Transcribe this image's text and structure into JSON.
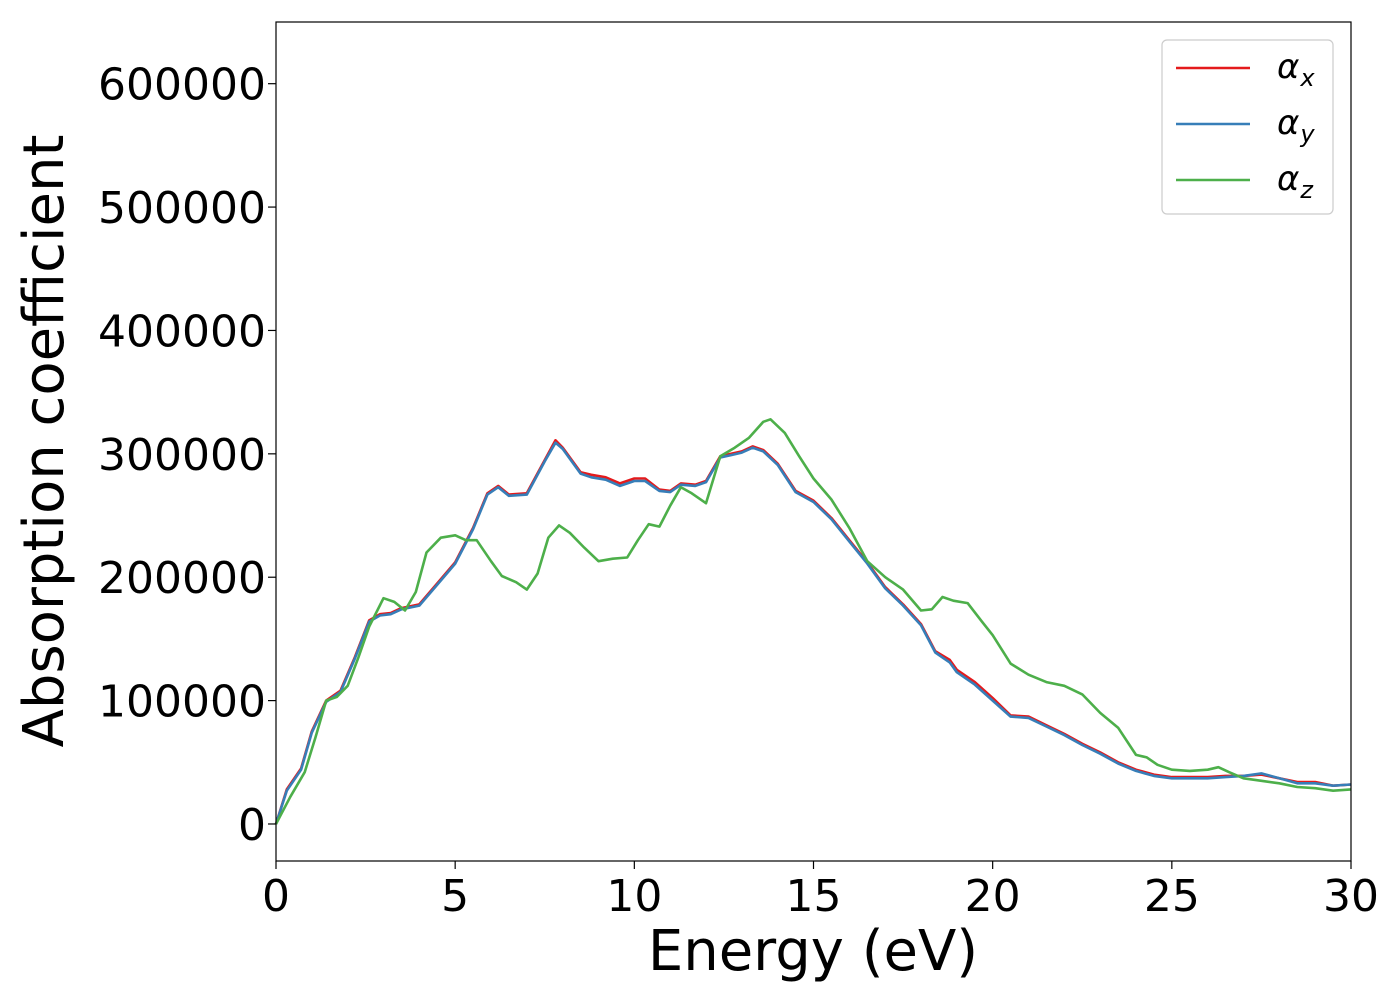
{
  "chart_data": {
    "type": "line",
    "title": "",
    "xlabel": "Energy (eV)",
    "ylabel": "Absorption coefficient",
    "xlim": [
      0,
      30
    ],
    "ylim": [
      -30000,
      650000
    ],
    "xticks": [
      0,
      5,
      10,
      15,
      20,
      25,
      30
    ],
    "yticks": [
      0,
      100000,
      200000,
      300000,
      400000,
      500000,
      600000
    ],
    "xtick_labels": [
      "0",
      "5",
      "10",
      "15",
      "20",
      "25",
      "30"
    ],
    "ytick_labels": [
      "0",
      "100000",
      "200000",
      "300000",
      "400000",
      "500000",
      "600000"
    ],
    "grid": false,
    "legend_position": "top-right",
    "series": [
      {
        "name": "α_x",
        "symbol": "α",
        "subscript": "x",
        "color": "#e41a1c",
        "x": [
          0,
          0.3,
          0.7,
          1.0,
          1.4,
          1.8,
          2.2,
          2.6,
          2.9,
          3.2,
          3.5,
          4.0,
          4.5,
          5.0,
          5.5,
          5.9,
          6.2,
          6.5,
          7.0,
          7.5,
          7.8,
          8.0,
          8.5,
          8.8,
          9.2,
          9.6,
          10.0,
          10.3,
          10.7,
          11.0,
          11.3,
          11.7,
          12.0,
          12.4,
          12.7,
          13.0,
          13.3,
          13.6,
          14.0,
          14.5,
          15.0,
          15.5,
          16.0,
          16.5,
          17.0,
          17.5,
          18.0,
          18.4,
          18.8,
          19.0,
          19.5,
          20.0,
          20.5,
          21.0,
          21.5,
          22.0,
          22.5,
          23.0,
          23.5,
          24.0,
          24.5,
          25.0,
          25.5,
          26.0,
          26.5,
          27.0,
          27.5,
          28.0,
          28.5,
          29.0,
          29.5,
          30.0
        ],
        "values": [
          0,
          28000,
          45000,
          75000,
          100000,
          108000,
          135000,
          165000,
          170000,
          171000,
          175000,
          178000,
          195000,
          212000,
          240000,
          268000,
          274000,
          267000,
          268000,
          295000,
          311000,
          305000,
          285000,
          283000,
          281000,
          276000,
          280000,
          280000,
          271000,
          270000,
          276000,
          275000,
          278000,
          298000,
          300000,
          302000,
          306000,
          303000,
          292000,
          270000,
          262000,
          248000,
          230000,
          212000,
          192000,
          178000,
          162000,
          140000,
          133000,
          125000,
          115000,
          102000,
          88000,
          87000,
          80000,
          73000,
          65000,
          58000,
          50000,
          44000,
          40000,
          38000,
          38000,
          38000,
          39000,
          39000,
          40000,
          37000,
          34000,
          34000,
          31000,
          32000
        ]
      },
      {
        "name": "α_y",
        "symbol": "α",
        "subscript": "y",
        "color": "#377eb8",
        "x": [
          0,
          0.3,
          0.7,
          1.0,
          1.4,
          1.8,
          2.2,
          2.6,
          2.9,
          3.2,
          3.5,
          4.0,
          4.5,
          5.0,
          5.5,
          5.9,
          6.2,
          6.5,
          7.0,
          7.5,
          7.8,
          8.0,
          8.5,
          8.8,
          9.2,
          9.6,
          10.0,
          10.3,
          10.7,
          11.0,
          11.3,
          11.7,
          12.0,
          12.4,
          12.7,
          13.0,
          13.3,
          13.6,
          14.0,
          14.5,
          15.0,
          15.5,
          16.0,
          16.5,
          17.0,
          17.5,
          18.0,
          18.4,
          18.8,
          19.0,
          19.5,
          20.0,
          20.5,
          21.0,
          21.5,
          22.0,
          22.5,
          23.0,
          23.5,
          24.0,
          24.5,
          25.0,
          25.5,
          26.0,
          26.5,
          27.0,
          27.5,
          28.0,
          28.5,
          29.0,
          29.5,
          30.0
        ],
        "values": [
          0,
          27000,
          44000,
          74000,
          99000,
          107000,
          134000,
          164000,
          169000,
          170000,
          174000,
          177000,
          194000,
          211000,
          239000,
          267000,
          273000,
          266000,
          267000,
          294000,
          309000,
          304000,
          284000,
          281000,
          279000,
          274000,
          278000,
          278000,
          270000,
          269000,
          275000,
          274000,
          277000,
          297000,
          299000,
          301000,
          305000,
          302000,
          291000,
          269000,
          261000,
          247000,
          229000,
          211000,
          191000,
          177000,
          161000,
          139000,
          131000,
          123000,
          113000,
          100000,
          87000,
          86000,
          79000,
          72000,
          64000,
          57000,
          49000,
          43000,
          39000,
          37000,
          37000,
          37000,
          38000,
          39000,
          41000,
          37000,
          33000,
          33000,
          31000,
          32000
        ]
      },
      {
        "name": "α_z",
        "symbol": "α",
        "subscript": "z",
        "color": "#4daf4a",
        "x": [
          0,
          0.4,
          0.8,
          1.1,
          1.4,
          1.7,
          2.0,
          2.3,
          2.6,
          3.0,
          3.3,
          3.6,
          3.9,
          4.2,
          4.6,
          5.0,
          5.3,
          5.6,
          6.0,
          6.3,
          6.7,
          7.0,
          7.3,
          7.6,
          7.9,
          8.2,
          8.6,
          9.0,
          9.4,
          9.8,
          10.1,
          10.4,
          10.7,
          11.0,
          11.3,
          11.6,
          12.0,
          12.4,
          12.8,
          13.2,
          13.6,
          13.8,
          14.2,
          14.6,
          15.0,
          15.5,
          16.0,
          16.5,
          17.0,
          17.5,
          18.0,
          18.3,
          18.6,
          18.9,
          19.3,
          19.7,
          20.0,
          20.5,
          21.0,
          21.5,
          22.0,
          22.5,
          23.0,
          23.5,
          24.0,
          24.3,
          24.6,
          25.0,
          25.5,
          26.0,
          26.3,
          26.6,
          27.0,
          27.5,
          28.0,
          28.5,
          29.0,
          29.5,
          30.0
        ],
        "values": [
          0,
          22000,
          42000,
          70000,
          100000,
          103000,
          112000,
          135000,
          160000,
          183000,
          180000,
          173000,
          188000,
          220000,
          232000,
          234000,
          230000,
          230000,
          213000,
          201000,
          196000,
          190000,
          203000,
          232000,
          242000,
          236000,
          224000,
          213000,
          215000,
          216000,
          230000,
          243000,
          241000,
          258000,
          273000,
          268000,
          260000,
          298000,
          305000,
          313000,
          326000,
          328000,
          317000,
          298000,
          280000,
          263000,
          240000,
          213000,
          200000,
          190000,
          173000,
          174000,
          184000,
          181000,
          179000,
          164000,
          153000,
          130000,
          121000,
          115000,
          112000,
          105000,
          90000,
          78000,
          56000,
          54000,
          48000,
          44000,
          43000,
          44000,
          46000,
          42000,
          37000,
          35000,
          33000,
          30000,
          29000,
          27000,
          28000
        ]
      }
    ]
  }
}
